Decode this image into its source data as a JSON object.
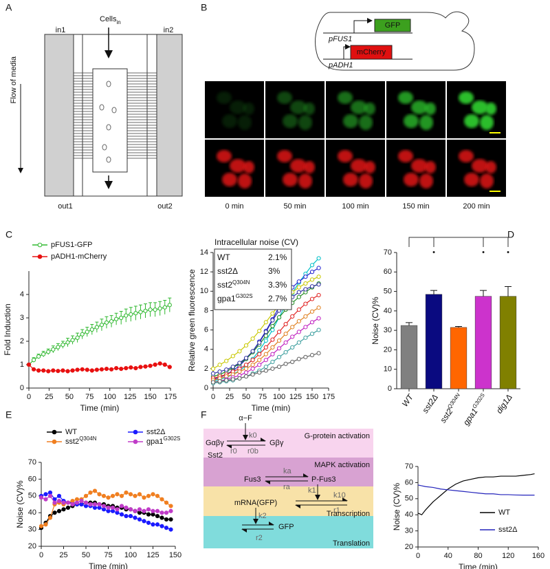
{
  "panel_labels": [
    "A",
    "B",
    "C",
    "D",
    "E",
    "F"
  ],
  "panel_a": {
    "inlet_1": "in1",
    "inlet_2": "in2",
    "cells": "Cells",
    "cells_sub": "in",
    "flow": "Flow of media",
    "outlet_1": "out1",
    "outlet_2": "out2"
  },
  "panel_b": {
    "promoter_1": "pFUS1",
    "gene_1": "GFP",
    "promoter_2": "pADH1",
    "gene_2": "mCherry",
    "times": [
      "0 min",
      "50 min",
      "100 min",
      "150 min",
      "200 min"
    ]
  },
  "panel_f": {
    "alpha_factor": "α−F",
    "k0": "k0",
    "g_abg": "Gαβγ",
    "g_bg": "Gβγ",
    "sst2": "Sst2",
    "r0": "r0",
    "r0b": "r0b",
    "band_1": "G-protein activation",
    "fus3": "Fus3",
    "ka": "ka",
    "p_fus3": "P-Fus3",
    "ra": "ra",
    "band_2": "MAPK activation",
    "k1": "k1",
    "k10": "k10",
    "mrna": "mRNA(GFP)",
    "r1": "r1",
    "band_3": "Transcription",
    "k2": "k2",
    "gfp": "GFP",
    "r2": "r2",
    "band_4": "Translation"
  },
  "chart_data": [
    {
      "type": "line",
      "xlabel": "Time (min)",
      "ylabel": "Fold Induction",
      "xlim": [
        0,
        175
      ],
      "ylim": [
        0,
        5
      ],
      "xticks": [
        0,
        25,
        50,
        75,
        100,
        125,
        150,
        175
      ],
      "yticks": [
        0,
        1,
        2,
        3,
        4
      ],
      "legend": "upper left",
      "x": [
        0,
        6,
        12,
        18,
        24,
        30,
        36,
        42,
        48,
        54,
        60,
        66,
        72,
        78,
        84,
        90,
        96,
        102,
        108,
        114,
        120,
        126,
        132,
        138,
        144,
        150,
        156,
        162,
        168,
        174
      ],
      "series": [
        {
          "name": "pFUS1-GFP",
          "color": "#2eb82e",
          "marker": "open",
          "values": [
            1.0,
            1.2,
            1.35,
            1.45,
            1.55,
            1.65,
            1.75,
            1.85,
            1.95,
            2.05,
            2.15,
            2.3,
            2.4,
            2.5,
            2.6,
            2.7,
            2.8,
            2.85,
            2.95,
            3.0,
            3.1,
            3.15,
            3.2,
            3.25,
            3.3,
            3.35,
            3.35,
            3.4,
            3.45,
            3.55
          ],
          "errors": [
            0.05,
            0.1,
            0.1,
            0.12,
            0.12,
            0.15,
            0.15,
            0.15,
            0.18,
            0.18,
            0.2,
            0.2,
            0.2,
            0.22,
            0.22,
            0.25,
            0.25,
            0.25,
            0.25,
            0.28,
            0.28,
            0.3,
            0.3,
            0.3,
            0.3,
            0.3,
            0.3,
            0.3,
            0.3,
            0.3
          ]
        },
        {
          "name": "pADH1-mCherry",
          "color": "#e81010",
          "marker": "filled",
          "values": [
            1.0,
            0.8,
            0.75,
            0.75,
            0.72,
            0.75,
            0.73,
            0.75,
            0.72,
            0.75,
            0.78,
            0.8,
            0.78,
            0.75,
            0.78,
            0.8,
            0.82,
            0.8,
            0.85,
            0.82,
            0.85,
            0.88,
            0.85,
            0.9,
            0.92,
            0.95,
            1.0,
            1.05,
            1.0,
            0.9
          ]
        }
      ]
    },
    {
      "type": "line",
      "title": "Intracellular noise (CV)",
      "xlabel": "Time (min)",
      "ylabel": "Relative green fluorescence",
      "xlim": [
        0,
        175
      ],
      "ylim": [
        0,
        14
      ],
      "xticks": [
        0,
        25,
        50,
        75,
        100,
        125,
        150,
        175
      ],
      "yticks": [
        0,
        2,
        4,
        6,
        8,
        10,
        12,
        14
      ],
      "marker": "open",
      "inset": [
        {
          "name": "WT",
          "cv": "2.1%"
        },
        {
          "name": "sst2Δ",
          "cv": "3%"
        },
        {
          "name": "sst2",
          "sup": "Q304N",
          "cv": "3.3%"
        },
        {
          "name": "gpa1",
          "sup": "G302S",
          "cv": "2.7%"
        }
      ],
      "x": [
        0,
        10,
        20,
        30,
        40,
        50,
        60,
        70,
        80,
        90,
        100,
        110,
        120,
        130,
        140,
        150,
        160
      ],
      "series": [
        {
          "color": "#00c0c8",
          "values": [
            0.7,
            0.9,
            1.1,
            1.4,
            1.8,
            2.3,
            3.0,
            3.9,
            4.9,
            6.0,
            7.3,
            8.6,
            9.8,
            10.9,
            11.8,
            12.7,
            13.4
          ]
        },
        {
          "color": "#2020d0",
          "values": [
            0.9,
            1.1,
            1.4,
            1.8,
            2.3,
            3.0,
            3.8,
            4.8,
            5.9,
            7.1,
            8.4,
            9.6,
            10.4,
            11.0,
            11.5,
            12.0,
            12.4
          ]
        },
        {
          "color": "#c8c800",
          "values": [
            2.0,
            2.4,
            2.8,
            3.3,
            3.8,
            4.4,
            5.1,
            5.9,
            6.8,
            7.7,
            8.6,
            9.3,
            9.9,
            10.4,
            10.8,
            11.2,
            11.5
          ]
        },
        {
          "color": "#208a20",
          "values": [
            1.2,
            1.4,
            1.7,
            2.1,
            2.5,
            3.0,
            3.7,
            4.5,
            5.4,
            6.4,
            7.3,
            8.1,
            8.8,
            9.4,
            9.9,
            10.4,
            10.8
          ]
        },
        {
          "color": "#e02020",
          "values": [
            1.0,
            1.2,
            1.4,
            1.7,
            2.0,
            2.4,
            2.9,
            3.5,
            4.2,
            5.0,
            5.8,
            6.6,
            7.4,
            8.1,
            8.7,
            9.2,
            9.6
          ]
        },
        {
          "color": "#e08020",
          "values": [
            0.8,
            1.0,
            1.2,
            1.4,
            1.7,
            2.0,
            2.4,
            2.9,
            3.5,
            4.2,
            4.9,
            5.6,
            6.3,
            6.9,
            7.4,
            7.9,
            8.3
          ]
        },
        {
          "color": "#c020c0",
          "values": [
            0.6,
            0.7,
            0.9,
            1.1,
            1.3,
            1.6,
            2.0,
            2.4,
            2.9,
            3.5,
            4.1,
            4.7,
            5.3,
            5.8,
            6.3,
            6.8,
            7.2
          ]
        },
        {
          "color": "#40a0a0",
          "values": [
            0.5,
            0.6,
            0.7,
            0.8,
            1.0,
            1.2,
            1.5,
            1.8,
            2.2,
            2.7,
            3.2,
            3.7,
            4.2,
            4.7,
            5.2,
            5.6,
            6.0
          ]
        },
        {
          "color": "#3030a0",
          "values": [
            1.5,
            1.7,
            1.9,
            2.2,
            2.6,
            3.1,
            3.8,
            4.7,
            5.8,
            7.0,
            8.0,
            8.8,
            9.4,
            9.9,
            10.2,
            10.5,
            10.7
          ]
        },
        {
          "color": "#606060",
          "values": [
            0.6,
            0.7,
            0.8,
            0.9,
            1.0,
            1.2,
            1.4,
            1.6,
            1.8,
            2.0,
            2.2,
            2.5,
            2.7,
            3.0,
            3.2,
            3.4,
            3.6
          ]
        }
      ]
    },
    {
      "type": "bar",
      "ylabel": "Noise (CV)%",
      "ylim": [
        0,
        70
      ],
      "yticks": [
        0,
        10,
        20,
        30,
        40,
        50,
        60,
        70
      ],
      "categories": [
        "WT",
        "sst2Δ",
        "sst2",
        "gpa1",
        "dig1Δ"
      ],
      "category_sups": [
        null,
        null,
        "Q304N",
        "G302S",
        null
      ],
      "values": [
        32.5,
        48.5,
        31.5,
        47.5,
        47.5
      ],
      "errors": [
        1.5,
        2,
        0.5,
        3,
        5
      ],
      "colors": [
        "#808080",
        "#0a0a80",
        "#ff6600",
        "#cc33cc",
        "#808000"
      ],
      "significance": [
        null,
        "•",
        null,
        "•",
        "•"
      ]
    },
    {
      "type": "line",
      "xlabel": "Time (min)",
      "ylabel": "Noise (CV)%",
      "xlim": [
        0,
        150
      ],
      "ylim": [
        20,
        70
      ],
      "xticks": [
        0,
        25,
        50,
        75,
        100,
        125,
        150
      ],
      "yticks": [
        20,
        30,
        40,
        50,
        60,
        70
      ],
      "legend": "top",
      "marker": "filled",
      "x": [
        0,
        5,
        10,
        15,
        20,
        25,
        30,
        35,
        40,
        45,
        50,
        55,
        60,
        65,
        70,
        75,
        80,
        85,
        90,
        95,
        100,
        105,
        110,
        115,
        120,
        125,
        130,
        135,
        140,
        145
      ],
      "series": [
        {
          "name": "WT",
          "color": "#000000",
          "values": [
            31,
            34,
            38,
            40,
            41,
            42,
            43,
            44,
            45,
            45,
            46,
            46,
            46,
            45,
            45,
            44,
            44,
            43,
            43,
            42,
            42,
            41,
            40,
            40,
            39,
            39,
            38,
            37,
            36,
            36
          ]
        },
        {
          "name": "sst2Δ",
          "color": "#1a1aff",
          "values": [
            50,
            51,
            52,
            48,
            50,
            47,
            46,
            46,
            45,
            45,
            44,
            44,
            43,
            43,
            42,
            41,
            41,
            40,
            39,
            38,
            38,
            37,
            36,
            35,
            34,
            33,
            33,
            32,
            31,
            30
          ]
        },
        {
          "name": "sst2",
          "sup": "Q304N",
          "color": "#f07f20",
          "values": [
            32,
            33,
            37,
            45,
            46,
            45,
            46,
            47,
            48,
            48,
            50,
            52,
            53,
            51,
            50,
            49,
            50,
            51,
            50,
            52,
            51,
            50,
            51,
            49,
            50,
            51,
            50,
            48,
            46,
            44
          ]
        },
        {
          "name": "gpa1",
          "sup": "G302S",
          "color": "#c03cc8",
          "values": [
            49,
            48,
            50,
            46,
            47,
            46,
            46,
            45,
            46,
            47,
            46,
            45,
            45,
            45,
            44,
            43,
            43,
            42,
            44,
            43,
            42,
            41,
            42,
            41,
            42,
            41,
            41,
            40,
            40,
            41
          ]
        }
      ]
    },
    {
      "type": "line",
      "xlabel": "Time (min)",
      "ylabel": "Noise  (CV)%",
      "xlim": [
        0,
        160
      ],
      "ylim": [
        20,
        70
      ],
      "xticks": [
        0,
        40,
        80,
        120,
        160
      ],
      "yticks": [
        20,
        30,
        40,
        50,
        60,
        70
      ],
      "legend": "lower right",
      "x": [
        0,
        5,
        10,
        20,
        30,
        40,
        50,
        60,
        70,
        80,
        90,
        100,
        110,
        120,
        130,
        140,
        150,
        155
      ],
      "series": [
        {
          "name": "WT",
          "color": "#000000",
          "values": [
            41,
            40,
            43,
            48,
            52,
            56,
            59,
            61,
            62,
            63,
            63.5,
            63.5,
            64,
            64,
            64,
            64.5,
            65,
            65.5
          ]
        },
        {
          "name": "sst2Δ",
          "color": "#2222bb",
          "values": [
            58.5,
            58,
            57.5,
            57,
            56,
            55.5,
            55,
            54.5,
            54,
            53.5,
            53,
            53,
            52.5,
            52.5,
            52.3,
            52.2,
            52.2,
            52.2
          ]
        }
      ]
    }
  ]
}
